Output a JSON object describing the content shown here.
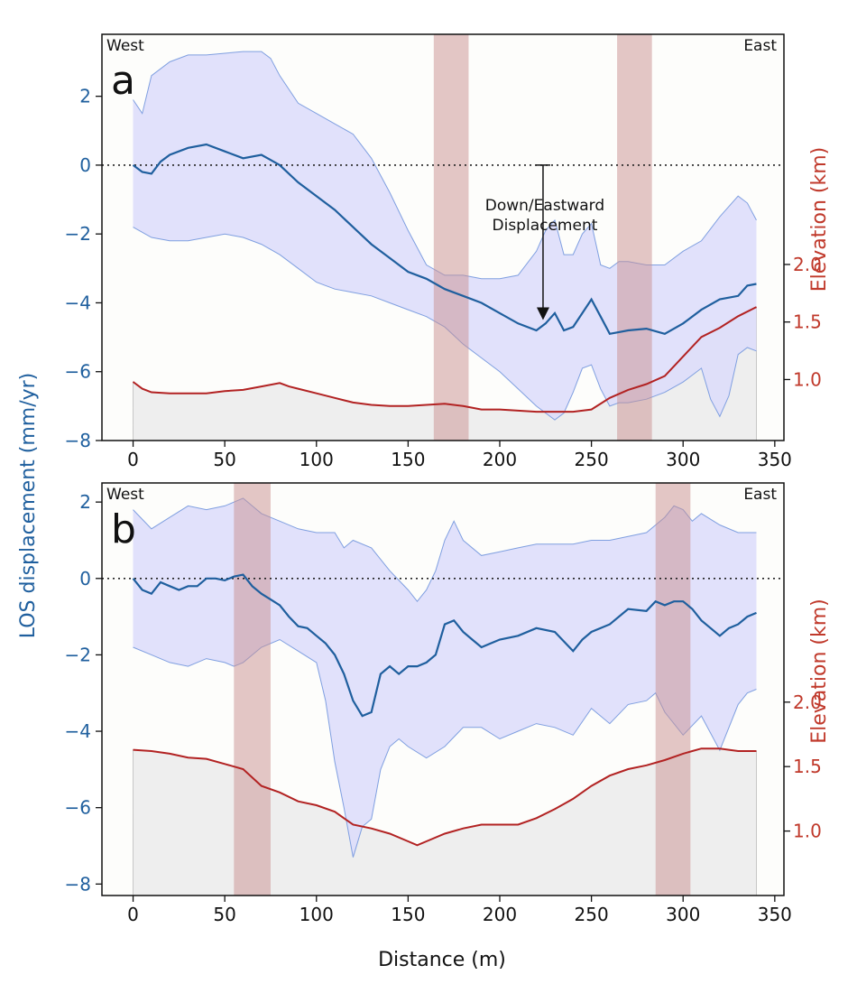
{
  "figure": {
    "ylabel_left": "LOS displacement (mm/yr)",
    "xlabel": "Distance (m)",
    "colors": {
      "los_line": "#1f5f9e",
      "envelope_fill": "#dcdcfa",
      "envelope_edge": "#7f9fe0",
      "elevation_line": "#b22222",
      "terrain_fill": "#eeeeee",
      "band": "#c99090",
      "zero_line": "#222222"
    }
  },
  "chart_data": [
    {
      "type": "line",
      "panel_label": "a",
      "corner_left": "West",
      "corner_right": "East",
      "xlim": [
        -17,
        355
      ],
      "ylim_left": [
        -8,
        3.8
      ],
      "ylim_right": [
        0.47,
        4.0
      ],
      "xticks": [
        "0",
        "50",
        "100",
        "150",
        "200",
        "250",
        "300",
        "350"
      ],
      "yticks_left": [
        "2",
        "0",
        "−2",
        "−4",
        "−6",
        "−8"
      ],
      "yticks_left_values": [
        2,
        0,
        -2,
        -4,
        -6,
        -8
      ],
      "yticks_right": [
        "2.0",
        "1.5",
        "1.0"
      ],
      "yticks_right_values": [
        2.0,
        1.5,
        1.0
      ],
      "ylabel_right": "Elevation (km)",
      "zero_reference": 0,
      "shaded_bands": [
        [
          164,
          183
        ],
        [
          264,
          283
        ]
      ],
      "annotation": {
        "text_lines": [
          "Down/Eastward",
          "Displacement"
        ],
        "arrow_x": 230,
        "arrow_from": 0,
        "arrow_to": -4.5
      },
      "series": [
        {
          "name": "LOS displacement (mean)",
          "x": [
            0,
            5,
            10,
            15,
            20,
            30,
            40,
            50,
            60,
            70,
            75,
            80,
            90,
            100,
            110,
            120,
            130,
            140,
            150,
            160,
            170,
            180,
            190,
            200,
            210,
            220,
            225,
            230,
            235,
            240,
            245,
            250,
            255,
            260,
            265,
            270,
            280,
            290,
            300,
            310,
            320,
            330,
            335,
            340
          ],
          "values": [
            0.0,
            -0.2,
            -0.25,
            0.1,
            0.3,
            0.5,
            0.6,
            0.4,
            0.2,
            0.3,
            0.15,
            0.0,
            -0.5,
            -0.9,
            -1.3,
            -1.8,
            -2.3,
            -2.7,
            -3.1,
            -3.3,
            -3.6,
            -3.8,
            -4.0,
            -4.3,
            -4.6,
            -4.8,
            -4.6,
            -4.3,
            -4.8,
            -4.7,
            -4.3,
            -3.9,
            -4.4,
            -4.9,
            -4.85,
            -4.8,
            -4.75,
            -4.9,
            -4.6,
            -4.2,
            -3.9,
            -3.8,
            -3.5,
            -3.45
          ]
        },
        {
          "name": "Envelope upper",
          "x": [
            0,
            5,
            10,
            20,
            30,
            40,
            50,
            60,
            70,
            75,
            80,
            90,
            100,
            110,
            120,
            130,
            140,
            150,
            160,
            170,
            180,
            190,
            200,
            210,
            220,
            225,
            230,
            235,
            240,
            245,
            250,
            255,
            260,
            265,
            270,
            280,
            290,
            300,
            310,
            320,
            330,
            335,
            340
          ],
          "values": [
            1.9,
            1.5,
            2.6,
            3.0,
            3.2,
            3.2,
            3.25,
            3.3,
            3.3,
            3.1,
            2.6,
            1.8,
            1.5,
            1.2,
            0.9,
            0.2,
            -0.8,
            -1.9,
            -2.9,
            -3.2,
            -3.2,
            -3.3,
            -3.3,
            -3.2,
            -2.5,
            -1.9,
            -1.6,
            -2.6,
            -2.6,
            -2.0,
            -1.7,
            -2.9,
            -3.0,
            -2.8,
            -2.8,
            -2.9,
            -2.9,
            -2.5,
            -2.2,
            -1.5,
            -0.9,
            -1.1,
            -1.6
          ]
        },
        {
          "name": "Envelope lower",
          "x": [
            0,
            10,
            20,
            30,
            40,
            50,
            60,
            70,
            80,
            90,
            100,
            110,
            120,
            130,
            140,
            150,
            160,
            170,
            180,
            190,
            200,
            210,
            220,
            230,
            235,
            240,
            245,
            250,
            255,
            260,
            265,
            270,
            280,
            290,
            300,
            310,
            315,
            320,
            325,
            330,
            335,
            340
          ],
          "values": [
            -1.8,
            -2.1,
            -2.2,
            -2.2,
            -2.1,
            -2.0,
            -2.1,
            -2.3,
            -2.6,
            -3.0,
            -3.4,
            -3.6,
            -3.7,
            -3.8,
            -4.0,
            -4.2,
            -4.4,
            -4.7,
            -5.2,
            -5.6,
            -6.0,
            -6.5,
            -7.0,
            -7.4,
            -7.2,
            -6.6,
            -5.9,
            -5.8,
            -6.5,
            -7.0,
            -6.9,
            -6.9,
            -6.8,
            -6.6,
            -6.3,
            -5.9,
            -6.8,
            -7.3,
            -6.7,
            -5.5,
            -5.3,
            -5.4
          ]
        },
        {
          "name": "Elevation",
          "axis": "right",
          "x": [
            0,
            5,
            10,
            20,
            30,
            40,
            50,
            60,
            70,
            80,
            85,
            90,
            100,
            110,
            120,
            130,
            140,
            150,
            160,
            170,
            180,
            190,
            200,
            210,
            220,
            230,
            240,
            250,
            260,
            270,
            280,
            290,
            300,
            310,
            320,
            330,
            340
          ],
          "values": [
            0.98,
            0.92,
            0.89,
            0.88,
            0.88,
            0.88,
            0.9,
            0.91,
            0.94,
            0.97,
            0.94,
            0.92,
            0.88,
            0.84,
            0.8,
            0.78,
            0.77,
            0.77,
            0.78,
            0.79,
            0.77,
            0.74,
            0.74,
            0.73,
            0.72,
            0.72,
            0.72,
            0.74,
            0.84,
            0.91,
            0.96,
            1.03,
            1.2,
            1.37,
            1.45,
            1.55,
            1.63
          ]
        }
      ]
    },
    {
      "type": "line",
      "panel_label": "b",
      "corner_left": "West",
      "corner_right": "East",
      "xlim": [
        -17,
        355
      ],
      "ylim_left": [
        -8.3,
        2.5
      ],
      "ylim_right": [
        0.5,
        3.7
      ],
      "xticks": [
        "0",
        "50",
        "100",
        "150",
        "200",
        "250",
        "300",
        "350"
      ],
      "yticks_left": [
        "2",
        "0",
        "−2",
        "−4",
        "−6",
        "−8"
      ],
      "yticks_left_values": [
        2,
        0,
        -2,
        -4,
        -6,
        -8
      ],
      "yticks_right": [
        "2.0",
        "1.5",
        "1.0"
      ],
      "yticks_right_values": [
        2.0,
        1.5,
        1.0
      ],
      "ylabel_right": "Elevation (km)",
      "zero_reference": 0,
      "shaded_bands": [
        [
          55,
          75
        ],
        [
          285,
          304
        ]
      ],
      "series": [
        {
          "name": "LOS displacement (mean)",
          "x": [
            0,
            5,
            10,
            15,
            20,
            25,
            30,
            35,
            40,
            45,
            50,
            55,
            60,
            65,
            70,
            75,
            80,
            85,
            90,
            95,
            100,
            105,
            110,
            115,
            120,
            125,
            130,
            135,
            140,
            145,
            150,
            155,
            160,
            165,
            170,
            175,
            180,
            185,
            190,
            195,
            200,
            210,
            220,
            230,
            240,
            245,
            250,
            260,
            270,
            280,
            285,
            290,
            295,
            300,
            305,
            310,
            315,
            320,
            325,
            330,
            335,
            340
          ],
          "values": [
            0.0,
            -0.3,
            -0.4,
            -0.1,
            -0.2,
            -0.3,
            -0.2,
            -0.2,
            0.0,
            0.0,
            -0.05,
            0.05,
            0.1,
            -0.2,
            -0.4,
            -0.55,
            -0.7,
            -1.0,
            -1.25,
            -1.3,
            -1.5,
            -1.7,
            -2.0,
            -2.5,
            -3.2,
            -3.6,
            -3.5,
            -2.5,
            -2.3,
            -2.5,
            -2.3,
            -2.3,
            -2.2,
            -2.0,
            -1.2,
            -1.1,
            -1.4,
            -1.6,
            -1.8,
            -1.7,
            -1.6,
            -1.5,
            -1.3,
            -1.4,
            -1.9,
            -1.6,
            -1.4,
            -1.2,
            -0.8,
            -0.85,
            -0.6,
            -0.7,
            -0.6,
            -0.6,
            -0.8,
            -1.1,
            -1.3,
            -1.5,
            -1.3,
            -1.2,
            -1.0,
            -0.9
          ]
        },
        {
          "name": "Envelope upper",
          "x": [
            0,
            10,
            20,
            30,
            40,
            50,
            55,
            60,
            70,
            80,
            90,
            100,
            110,
            115,
            120,
            130,
            140,
            150,
            155,
            160,
            165,
            170,
            175,
            180,
            190,
            200,
            210,
            220,
            230,
            240,
            250,
            260,
            270,
            280,
            290,
            295,
            300,
            305,
            310,
            320,
            330,
            340
          ],
          "values": [
            1.8,
            1.3,
            1.6,
            1.9,
            1.8,
            1.9,
            2.0,
            2.1,
            1.7,
            1.5,
            1.3,
            1.2,
            1.2,
            0.8,
            1.0,
            0.8,
            0.2,
            -0.3,
            -0.6,
            -0.3,
            0.2,
            1.0,
            1.5,
            1.0,
            0.6,
            0.7,
            0.8,
            0.9,
            0.9,
            0.9,
            1.0,
            1.0,
            1.1,
            1.2,
            1.6,
            1.9,
            1.8,
            1.5,
            1.7,
            1.4,
            1.2,
            1.2
          ]
        },
        {
          "name": "Envelope lower",
          "x": [
            0,
            10,
            20,
            30,
            40,
            50,
            55,
            60,
            70,
            80,
            90,
            100,
            105,
            110,
            115,
            120,
            125,
            130,
            135,
            140,
            145,
            150,
            160,
            170,
            180,
            190,
            200,
            210,
            220,
            230,
            240,
            250,
            260,
            270,
            280,
            285,
            290,
            300,
            310,
            320,
            330,
            335,
            340
          ],
          "values": [
            -1.8,
            -2.0,
            -2.2,
            -2.3,
            -2.1,
            -2.2,
            -2.3,
            -2.2,
            -1.8,
            -1.6,
            -1.9,
            -2.2,
            -3.2,
            -4.8,
            -6.0,
            -7.3,
            -6.5,
            -6.3,
            -5.0,
            -4.4,
            -4.2,
            -4.4,
            -4.7,
            -4.4,
            -3.9,
            -3.9,
            -4.2,
            -4.0,
            -3.8,
            -3.9,
            -4.1,
            -3.4,
            -3.8,
            -3.3,
            -3.2,
            -3.0,
            -3.5,
            -4.1,
            -3.6,
            -4.5,
            -3.3,
            -3.0,
            -2.9
          ]
        },
        {
          "name": "Elevation",
          "axis": "right",
          "x": [
            0,
            10,
            20,
            30,
            40,
            50,
            60,
            70,
            80,
            90,
            100,
            110,
            120,
            130,
            140,
            150,
            155,
            160,
            170,
            180,
            190,
            200,
            210,
            220,
            230,
            240,
            250,
            260,
            270,
            280,
            290,
            300,
            305,
            310,
            320,
            330,
            340
          ],
          "values": [
            1.63,
            1.62,
            1.6,
            1.57,
            1.56,
            1.52,
            1.48,
            1.35,
            1.3,
            1.23,
            1.2,
            1.15,
            1.05,
            1.02,
            0.98,
            0.92,
            0.89,
            0.92,
            0.98,
            1.02,
            1.05,
            1.05,
            1.05,
            1.1,
            1.17,
            1.25,
            1.35,
            1.43,
            1.48,
            1.51,
            1.55,
            1.6,
            1.62,
            1.64,
            1.64,
            1.62,
            1.62
          ]
        }
      ]
    }
  ]
}
